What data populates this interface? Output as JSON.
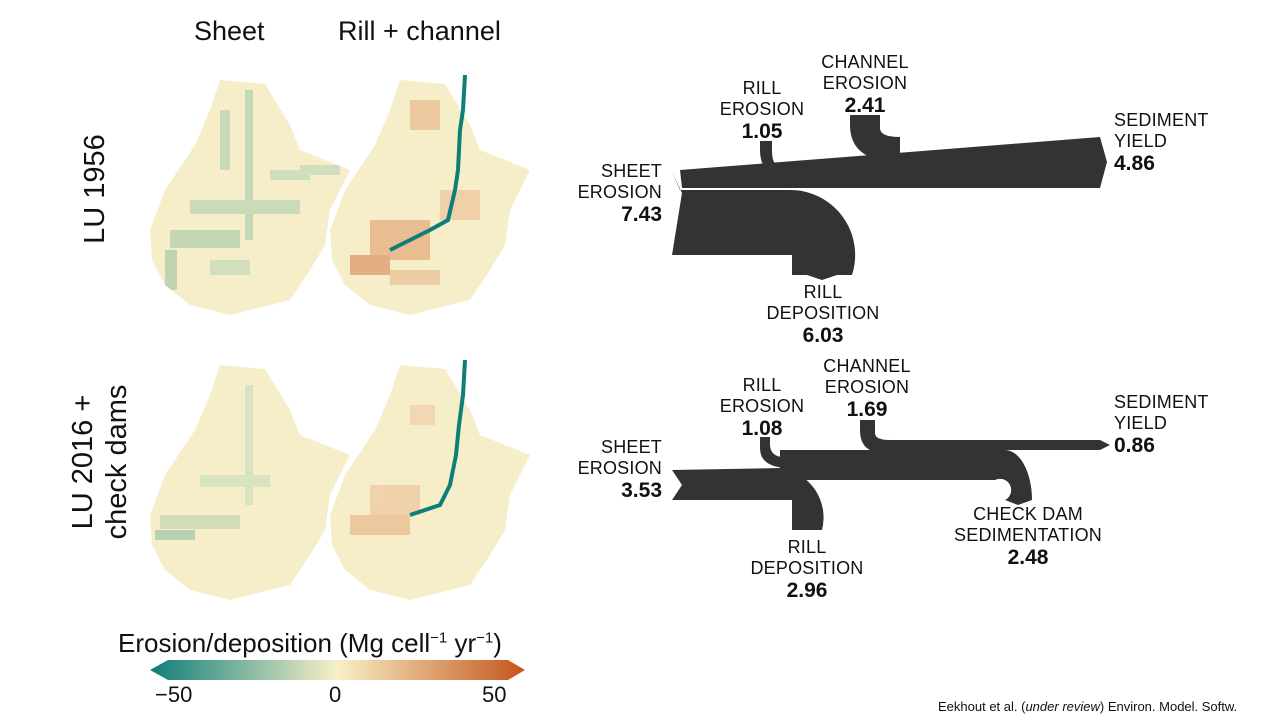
{
  "columns": {
    "sheet": "Sheet",
    "rill_channel": "Rill + channel"
  },
  "rows": {
    "r1": "LU 1956",
    "r2_line1": "LU 2016 +",
    "r2_line2": "check dams"
  },
  "sankey_1956": {
    "rill_erosion": {
      "l1": "RILL",
      "l2": "EROSION",
      "value": "1.05"
    },
    "channel_erosion": {
      "l1": "CHANNEL",
      "l2": "EROSION",
      "value": "2.41"
    },
    "sediment_yield": {
      "l1": "SEDIMENT",
      "l2": "YIELD",
      "value": "4.86"
    },
    "sheet_erosion": {
      "l1": "SHEET",
      "l2": "EROSION",
      "value": "7.43"
    },
    "rill_deposition": {
      "l1": "RILL",
      "l2": "DEPOSITION",
      "value": "6.03"
    }
  },
  "sankey_2016": {
    "rill_erosion": {
      "l1": "RILL",
      "l2": "EROSION",
      "value": "1.08"
    },
    "channel_erosion": {
      "l1": "CHANNEL",
      "l2": "EROSION",
      "value": "1.69"
    },
    "sediment_yield": {
      "l1": "SEDIMENT",
      "l2": "YIELD",
      "value": "0.86"
    },
    "sheet_erosion": {
      "l1": "SHEET",
      "l2": "EROSION",
      "value": "3.53"
    },
    "rill_deposition": {
      "l1": "RILL",
      "l2": "DEPOSITION",
      "value": "2.96"
    },
    "check_dam": {
      "l1": "CHECK DAM",
      "l2": "SEDIMENTATION",
      "value": "2.48"
    }
  },
  "legend": {
    "title_pre": "Erosion/deposition (Mg cell",
    "exp1": "−1",
    "title_mid": " yr",
    "exp2": "−1",
    "title_post": ")",
    "ticks": [
      "−50",
      "0",
      "50"
    ],
    "colors": {
      "low": "#0e7e7a",
      "mid": "#f7f0c6",
      "high": "#c4551b"
    }
  },
  "credit": {
    "authors": "Eekhout et al. (",
    "status": "under review",
    "journal": ") Environ. Model. Softw."
  },
  "colors": {
    "flow": "#333333"
  }
}
